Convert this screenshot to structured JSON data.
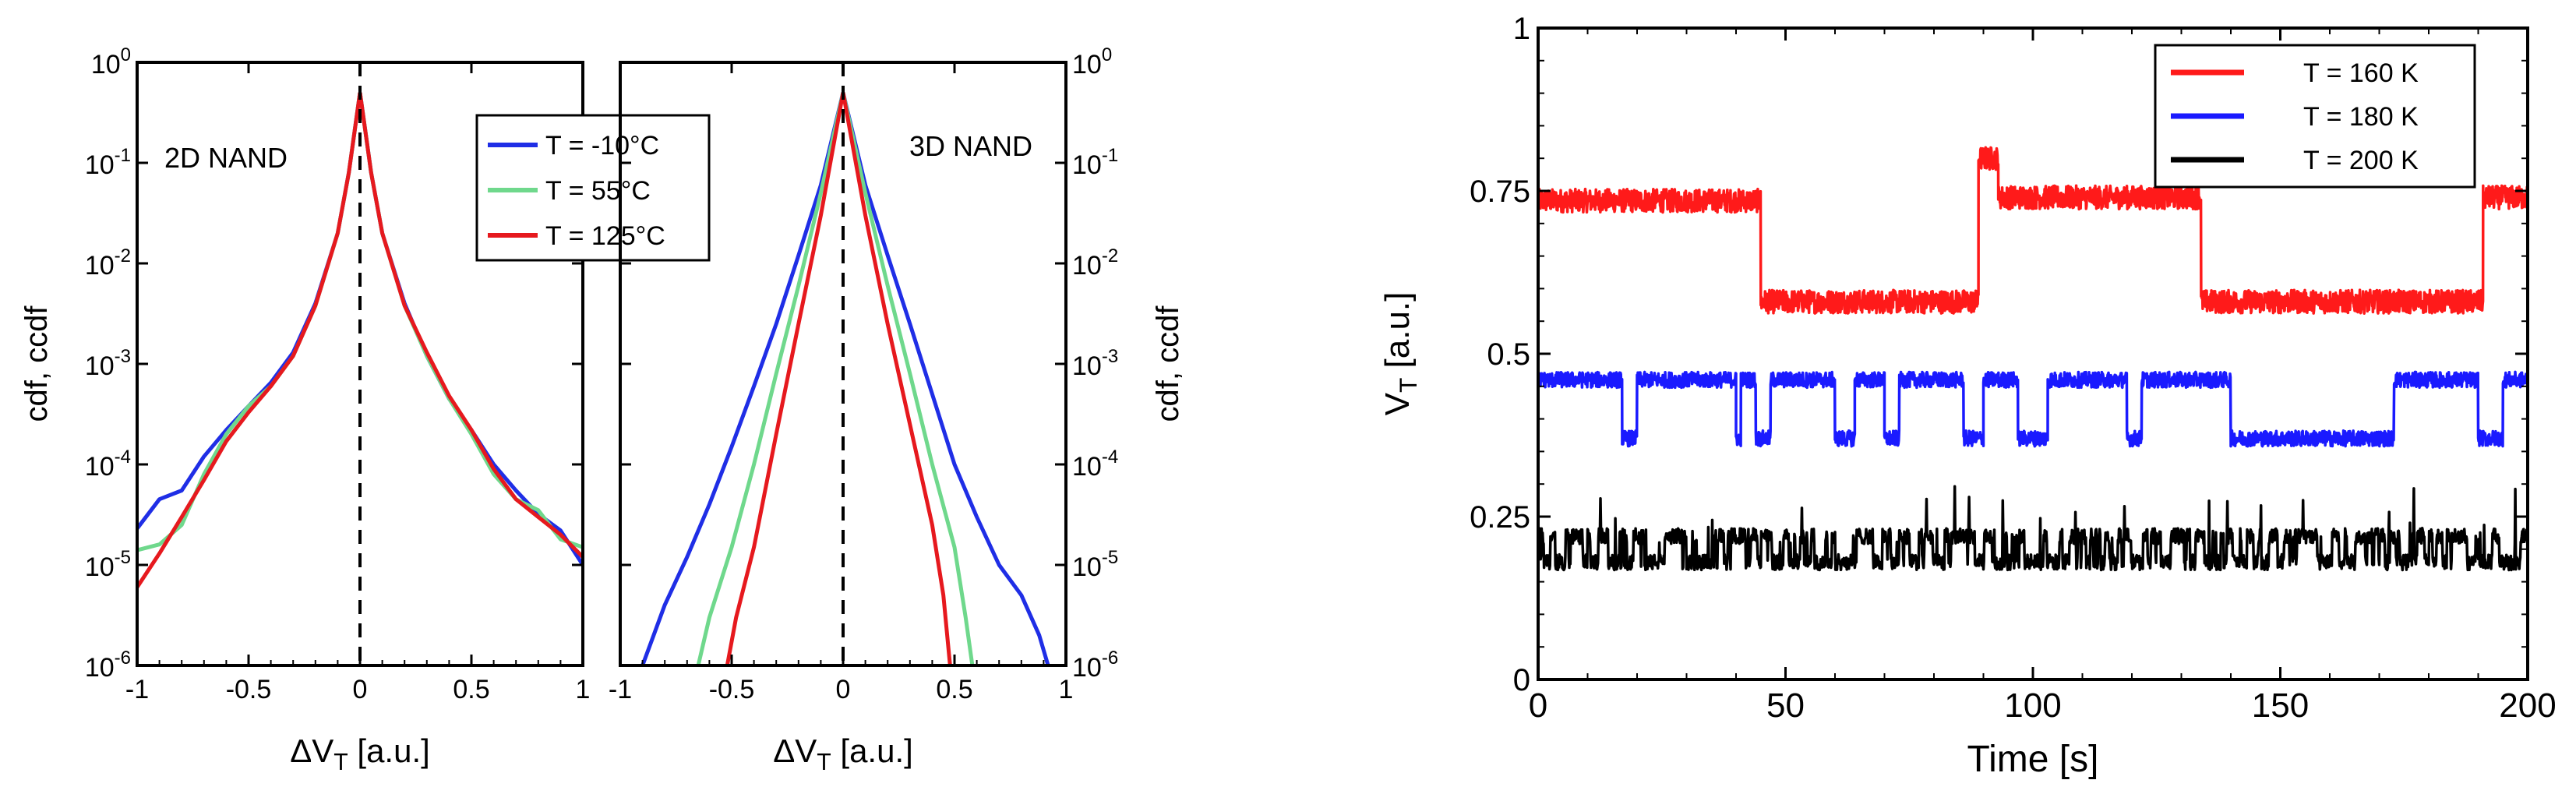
{
  "chart_data": [
    {
      "type": "line",
      "annotation": "2D NAND",
      "xlabel": "ΔV",
      "xlabel_sub": "T",
      "xlabel_unit": " [a.u.]",
      "ylabel": "cdf, ccdf",
      "xlim": [
        -1,
        1
      ],
      "ylim": [
        1e-06,
        1
      ],
      "yscale": "log",
      "x_ticks": [
        "-1",
        "-0.5",
        "0",
        "0.5",
        "1"
      ],
      "y_ticks": [
        "10^-6",
        "10^-5",
        "10^-4",
        "10^-3",
        "10^-2",
        "10^-1",
        "10^0"
      ],
      "reference_line": {
        "x": 0,
        "style": "dashed"
      },
      "legend": {
        "position": "top-right",
        "entries": [
          "T = -10°C",
          "T = 55°C",
          "T = 125°C"
        ]
      },
      "series": [
        {
          "name": "T = -10°C",
          "color": "#1f2ee6",
          "left": [
            [
              -1.0,
              2.3e-05
            ],
            [
              -0.9,
              4.5e-05
            ],
            [
              -0.8,
              5.5e-05
            ],
            [
              -0.7,
              0.00012
            ],
            [
              -0.6,
              0.00022
            ],
            [
              -0.5,
              0.00038
            ],
            [
              -0.4,
              0.00065
            ],
            [
              -0.3,
              0.0013
            ],
            [
              -0.2,
              0.004
            ],
            [
              -0.1,
              0.02
            ],
            [
              -0.05,
              0.08
            ],
            [
              0,
              0.5
            ]
          ],
          "right": [
            [
              0,
              0.5
            ],
            [
              0.05,
              0.08
            ],
            [
              0.1,
              0.02
            ],
            [
              0.2,
              0.004
            ],
            [
              0.3,
              0.0012
            ],
            [
              0.4,
              0.00045
            ],
            [
              0.5,
              0.00022
            ],
            [
              0.6,
              0.0001
            ],
            [
              0.7,
              5.5e-05
            ],
            [
              0.8,
              3.2e-05
            ],
            [
              0.9,
              2.2e-05
            ],
            [
              1.0,
              1e-05
            ]
          ]
        },
        {
          "name": "T = 55°C",
          "color": "#6fd88c",
          "left": [
            [
              -1.0,
              1.4e-05
            ],
            [
              -0.9,
              1.6e-05
            ],
            [
              -0.8,
              2.5e-05
            ],
            [
              -0.7,
              8e-05
            ],
            [
              -0.6,
              0.0002
            ],
            [
              -0.5,
              0.00038
            ],
            [
              -0.4,
              0.0006
            ],
            [
              -0.3,
              0.0012
            ],
            [
              -0.2,
              0.0038
            ],
            [
              -0.1,
              0.02
            ],
            [
              -0.05,
              0.08
            ],
            [
              0,
              0.5
            ]
          ],
          "right": [
            [
              0,
              0.5
            ],
            [
              0.05,
              0.08
            ],
            [
              0.1,
              0.02
            ],
            [
              0.2,
              0.0038
            ],
            [
              0.3,
              0.0012
            ],
            [
              0.4,
              0.00045
            ],
            [
              0.5,
              0.0002
            ],
            [
              0.6,
              8e-05
            ],
            [
              0.7,
              4.5e-05
            ],
            [
              0.8,
              3.5e-05
            ],
            [
              0.9,
              1.8e-05
            ],
            [
              1.0,
              1.5e-05
            ]
          ]
        },
        {
          "name": "T = 125°C",
          "color": "#e6191e",
          "left": [
            [
              -1.0,
              6e-06
            ],
            [
              -0.9,
              1.3e-05
            ],
            [
              -0.8,
              3e-05
            ],
            [
              -0.7,
              7e-05
            ],
            [
              -0.6,
              0.00017
            ],
            [
              -0.5,
              0.00033
            ],
            [
              -0.4,
              0.0006
            ],
            [
              -0.3,
              0.0012
            ],
            [
              -0.2,
              0.0038
            ],
            [
              -0.1,
              0.02
            ],
            [
              -0.05,
              0.08
            ],
            [
              0,
              0.5
            ]
          ],
          "right": [
            [
              0,
              0.5
            ],
            [
              0.05,
              0.08
            ],
            [
              0.1,
              0.02
            ],
            [
              0.2,
              0.0038
            ],
            [
              0.3,
              0.0013
            ],
            [
              0.4,
              0.00048
            ],
            [
              0.5,
              0.00022
            ],
            [
              0.6,
              9e-05
            ],
            [
              0.7,
              4.5e-05
            ],
            [
              0.8,
              3e-05
            ],
            [
              0.9,
              2e-05
            ],
            [
              1.0,
              1.2e-05
            ]
          ]
        }
      ]
    },
    {
      "type": "line",
      "annotation": "3D NAND",
      "xlabel": "ΔV",
      "xlabel_sub": "T",
      "xlabel_unit": " [a.u.]",
      "ylabel": "cdf, ccdf",
      "xlim": [
        -1,
        1
      ],
      "ylim": [
        1e-06,
        1
      ],
      "yscale": "log",
      "x_ticks": [
        "-1",
        "-0.5",
        "0",
        "0.5",
        "1"
      ],
      "y_ticks": [
        "10^-6",
        "10^-5",
        "10^-4",
        "10^-3",
        "10^-2",
        "10^-1",
        "10^0"
      ],
      "reference_line": {
        "x": 0,
        "style": "dashed"
      },
      "series": [
        {
          "name": "T = -10°C",
          "color": "#1f2ee6",
          "left": [
            [
              -0.9,
              1e-06
            ],
            [
              -0.85,
              2e-06
            ],
            [
              -0.8,
              4e-06
            ],
            [
              -0.7,
              1.2e-05
            ],
            [
              -0.6,
              4e-05
            ],
            [
              -0.5,
              0.00015
            ],
            [
              -0.4,
              0.0006
            ],
            [
              -0.3,
              0.0025
            ],
            [
              -0.2,
              0.012
            ],
            [
              -0.1,
              0.06
            ],
            [
              0,
              0.5
            ]
          ],
          "right": [
            [
              0,
              0.5
            ],
            [
              0.1,
              0.06
            ],
            [
              0.2,
              0.012
            ],
            [
              0.3,
              0.0025
            ],
            [
              0.4,
              0.0005
            ],
            [
              0.5,
              0.0001
            ],
            [
              0.6,
              3e-05
            ],
            [
              0.7,
              1e-05
            ],
            [
              0.8,
              5e-06
            ],
            [
              0.88,
              2e-06
            ],
            [
              0.92,
              1e-06
            ]
          ]
        },
        {
          "name": "T = 55°C",
          "color": "#6fd88c",
          "left": [
            [
              -0.65,
              1e-06
            ],
            [
              -0.6,
              3e-06
            ],
            [
              -0.5,
              1.5e-05
            ],
            [
              -0.4,
              0.0001
            ],
            [
              -0.3,
              0.0008
            ],
            [
              -0.2,
              0.006
            ],
            [
              -0.1,
              0.05
            ],
            [
              0,
              0.5
            ]
          ],
          "right": [
            [
              0,
              0.5
            ],
            [
              0.1,
              0.05
            ],
            [
              0.2,
              0.006
            ],
            [
              0.3,
              0.0008
            ],
            [
              0.4,
              0.0001
            ],
            [
              0.5,
              1.5e-05
            ],
            [
              0.55,
              3e-06
            ],
            [
              0.58,
              1e-06
            ]
          ]
        },
        {
          "name": "T = 125°C",
          "color": "#e6191e",
          "left": [
            [
              -0.52,
              1e-06
            ],
            [
              -0.48,
              3e-06
            ],
            [
              -0.4,
              1.5e-05
            ],
            [
              -0.3,
              0.0002
            ],
            [
              -0.2,
              0.0025
            ],
            [
              -0.1,
              0.03
            ],
            [
              0,
              0.5
            ]
          ],
          "right": [
            [
              0,
              0.5
            ],
            [
              0.1,
              0.03
            ],
            [
              0.2,
              0.0025
            ],
            [
              0.3,
              0.00025
            ],
            [
              0.4,
              2.5e-05
            ],
            [
              0.45,
              5e-06
            ],
            [
              0.48,
              1e-06
            ]
          ]
        }
      ]
    },
    {
      "type": "line",
      "xlabel": "Time [s]",
      "ylabel": "V",
      "ylabel_sub": "T",
      "ylabel_unit": " [a.u.]",
      "xlim": [
        0,
        200
      ],
      "ylim": [
        0,
        1
      ],
      "x_ticks": [
        "0",
        "50",
        "100",
        "150",
        "200"
      ],
      "y_ticks": [
        "0",
        "0.25",
        "0.5",
        "0.75",
        "1"
      ],
      "legend": {
        "position": "top-right",
        "entries": [
          "T = 160 K",
          "T = 180 K",
          "T = 200 K"
        ]
      },
      "series": [
        {
          "name": "T = 160 K",
          "color": "#ff1a1a",
          "levels": [
            0.735,
            0.58
          ],
          "noise": 0.018,
          "segments": [
            [
              0,
              45,
              0.735
            ],
            [
              45,
              89,
              0.58
            ],
            [
              89,
              93,
              0.8
            ],
            [
              93,
              134,
              0.74
            ],
            [
              134,
              191,
              0.58
            ],
            [
              191,
              200,
              0.74
            ]
          ]
        },
        {
          "name": "T = 180 K",
          "color": "#1a1aff",
          "levels": [
            0.46,
            0.37
          ],
          "noise": 0.012,
          "segments": [
            [
              0,
              8,
              0.46
            ],
            [
              8,
              17,
              0.46
            ],
            [
              17,
              20,
              0.37
            ],
            [
              20,
              40,
              0.46
            ],
            [
              40,
              41,
              0.37
            ],
            [
              41,
              44,
              0.46
            ],
            [
              44,
              47,
              0.37
            ],
            [
              47,
              60,
              0.46
            ],
            [
              60,
              64,
              0.37
            ],
            [
              64,
              70,
              0.46
            ],
            [
              70,
              73,
              0.37
            ],
            [
              73,
              86,
              0.46
            ],
            [
              86,
              90,
              0.37
            ],
            [
              90,
              97,
              0.46
            ],
            [
              97,
              103,
              0.37
            ],
            [
              103,
              106,
              0.46
            ],
            [
              106,
              119,
              0.46
            ],
            [
              119,
              122,
              0.37
            ],
            [
              122,
              140,
              0.46
            ],
            [
              140,
              153,
              0.37
            ],
            [
              153,
              157,
              0.37
            ],
            [
              157,
              173,
              0.37
            ],
            [
              173,
              190,
              0.46
            ],
            [
              190,
              195,
              0.37
            ],
            [
              195,
              200,
              0.46
            ]
          ]
        },
        {
          "name": "T = 200 K",
          "color": "#000000",
          "levels": [
            0.22,
            0.18
          ],
          "noise": 0.012,
          "switching": "fast telegraph"
        }
      ]
    }
  ]
}
